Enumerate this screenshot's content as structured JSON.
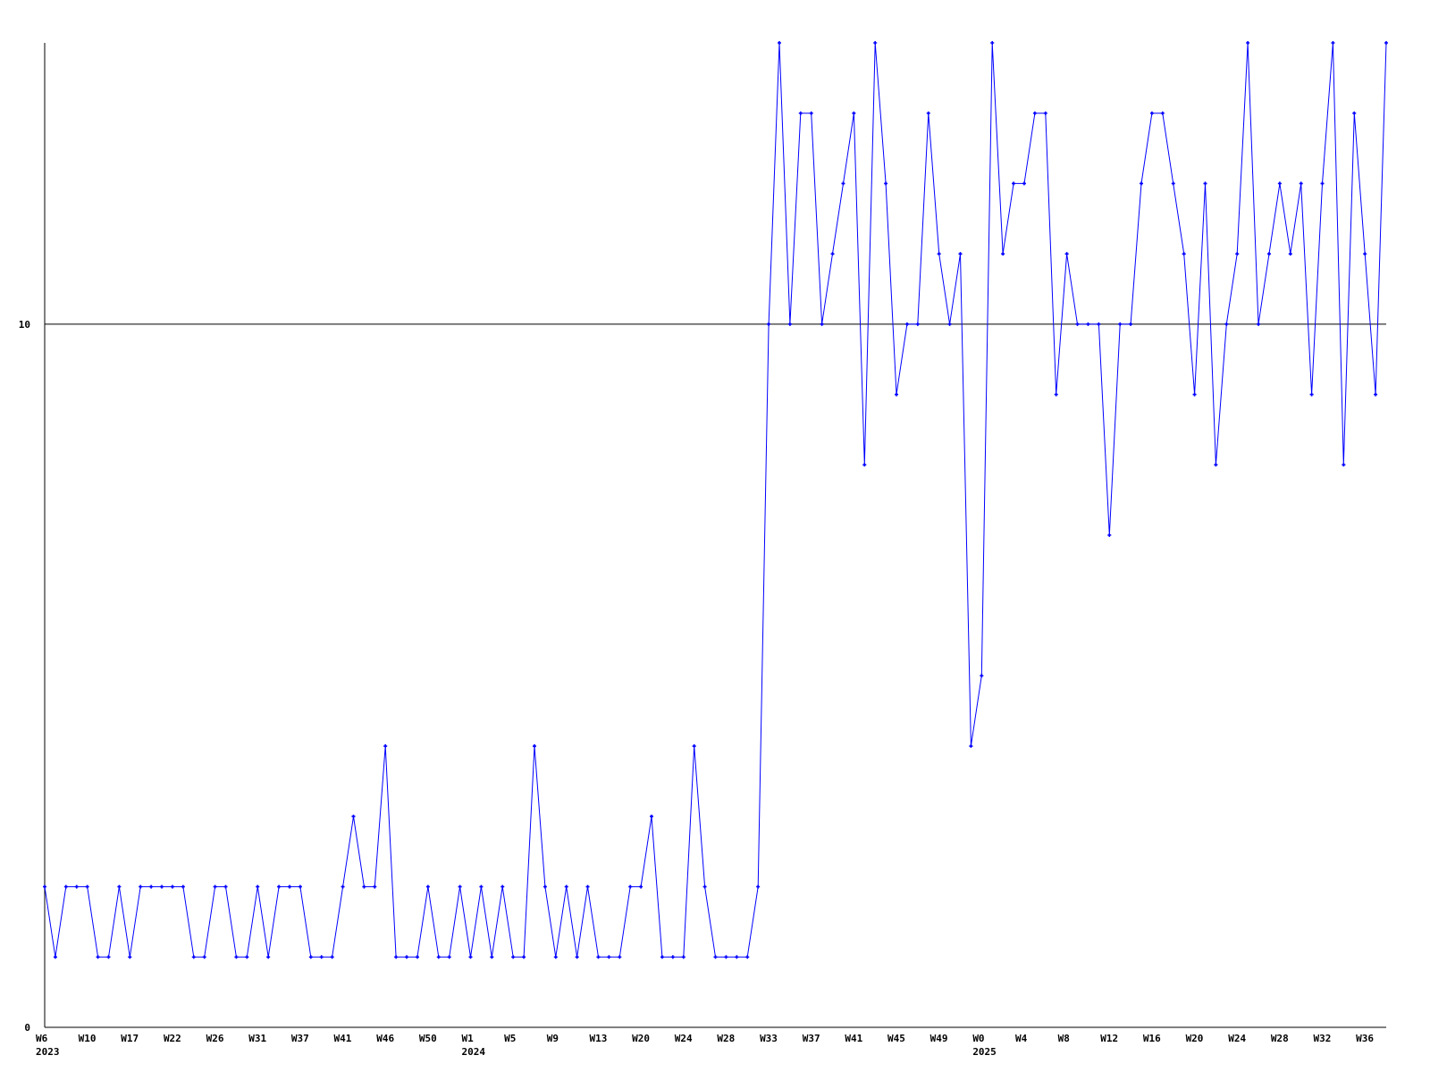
{
  "chart_data": {
    "type": "line",
    "title": "",
    "xlabel": "",
    "ylabel": "",
    "ylim": [
      0,
      14
    ],
    "y_ticks": [
      0,
      10
    ],
    "grid": "horizontal line at 10",
    "line_color": "#0000ff",
    "axis_color": "#000000",
    "x_tick_labels": [
      "W6",
      "W10",
      "W17",
      "W22",
      "W26",
      "W31",
      "W37",
      "W41",
      "W46",
      "W50",
      "W1",
      "W5",
      "W9",
      "W13",
      "W20",
      "W24",
      "W28",
      "W33",
      "W37",
      "W41",
      "W45",
      "W49",
      "W0",
      "W4",
      "W8",
      "W12",
      "W16",
      "W20",
      "W24",
      "W28",
      "W32",
      "W36"
    ],
    "x_tick_every": 4,
    "year_labels": [
      {
        "label": "2023",
        "at_tick": 0
      },
      {
        "label": "2024",
        "at_tick": 10
      },
      {
        "label": "2025",
        "at_tick": 22
      }
    ],
    "values": [
      2,
      1,
      2,
      2,
      2,
      1,
      1,
      2,
      1,
      2,
      2,
      2,
      2,
      2,
      1,
      1,
      2,
      2,
      1,
      1,
      2,
      1,
      2,
      2,
      2,
      1,
      1,
      1,
      2,
      3,
      2,
      2,
      4,
      1,
      1,
      1,
      2,
      1,
      1,
      2,
      1,
      2,
      1,
      2,
      1,
      1,
      4,
      2,
      1,
      2,
      1,
      2,
      1,
      1,
      1,
      2,
      2,
      3,
      1,
      1,
      1,
      4,
      2,
      1,
      1,
      1,
      1,
      2,
      10,
      14,
      10,
      13,
      13,
      10,
      11,
      12,
      13,
      8,
      14,
      12,
      9,
      10,
      10,
      13,
      11,
      10,
      11,
      4,
      5,
      14,
      11,
      12,
      12,
      13,
      13,
      9,
      11,
      10,
      10,
      10,
      7,
      10,
      10,
      12,
      13,
      13,
      12,
      11,
      9,
      12,
      8,
      10,
      11,
      14,
      10,
      11,
      12,
      11,
      12,
      9,
      12,
      14,
      8,
      13,
      11,
      9,
      14
    ]
  }
}
